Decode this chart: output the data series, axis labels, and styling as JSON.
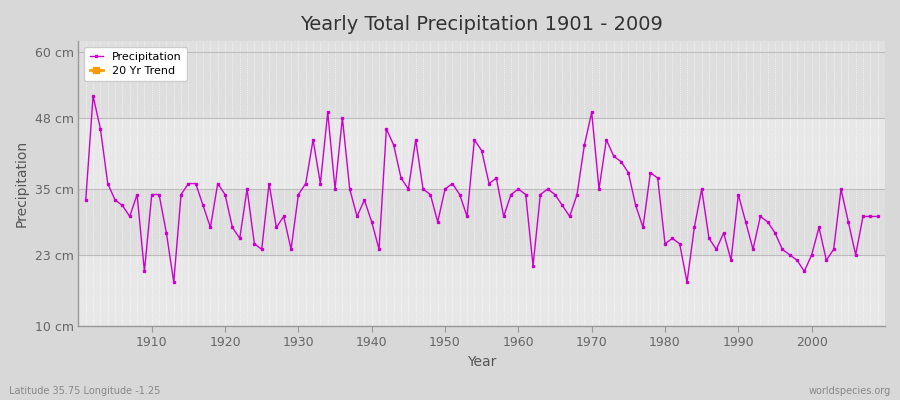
{
  "title": "Yearly Total Precipitation 1901 - 2009",
  "xlabel": "Year",
  "ylabel": "Precipitation",
  "subtitle": "Latitude 35.75 Longitude -1.25",
  "watermark": "worldspecies.org",
  "line_color": "#cc00cc",
  "trend_color": "#ff9900",
  "bg_color": "#d8d8d8",
  "plot_bg_outer": "#e0e0e0",
  "plot_bg_inner": "#e8e8e8",
  "band_color": "#d8d8d8",
  "grid_color": "#ffffff",
  "ylim": [
    10,
    62
  ],
  "yticks": [
    10,
    23,
    35,
    48,
    60
  ],
  "ytick_labels": [
    "10 cm",
    "23 cm",
    "35 cm",
    "48 cm",
    "60 cm"
  ],
  "xlim_left": 1900,
  "xlim_right": 2010,
  "xticks": [
    1910,
    1920,
    1930,
    1940,
    1950,
    1960,
    1970,
    1980,
    1990,
    2000
  ],
  "years": [
    1901,
    1902,
    1903,
    1904,
    1905,
    1906,
    1907,
    1908,
    1909,
    1910,
    1911,
    1912,
    1913,
    1914,
    1915,
    1916,
    1917,
    1918,
    1919,
    1920,
    1921,
    1922,
    1923,
    1924,
    1925,
    1926,
    1927,
    1928,
    1929,
    1930,
    1931,
    1932,
    1933,
    1934,
    1935,
    1936,
    1937,
    1938,
    1939,
    1940,
    1941,
    1942,
    1943,
    1944,
    1945,
    1946,
    1947,
    1948,
    1949,
    1950,
    1951,
    1952,
    1953,
    1954,
    1955,
    1956,
    1957,
    1958,
    1959,
    1960,
    1961,
    1962,
    1963,
    1964,
    1965,
    1966,
    1967,
    1968,
    1969,
    1970,
    1971,
    1972,
    1973,
    1974,
    1975,
    1976,
    1977,
    1978,
    1979,
    1980,
    1981,
    1982,
    1983,
    1984,
    1985,
    1986,
    1987,
    1988,
    1989,
    1990,
    1991,
    1992,
    1993,
    1994,
    1995,
    1996,
    1997,
    1998,
    1999,
    2000,
    2001,
    2002,
    2003,
    2004,
    2005,
    2006,
    2007,
    2008,
    2009
  ],
  "precip": [
    33,
    52,
    46,
    36,
    33,
    32,
    30,
    34,
    20,
    34,
    34,
    27,
    18,
    34,
    36,
    36,
    32,
    28,
    36,
    34,
    28,
    26,
    35,
    25,
    24,
    36,
    28,
    30,
    24,
    34,
    36,
    44,
    36,
    49,
    35,
    48,
    35,
    30,
    33,
    29,
    24,
    46,
    43,
    37,
    35,
    44,
    35,
    34,
    29,
    35,
    36,
    34,
    30,
    44,
    42,
    36,
    37,
    30,
    34,
    35,
    34,
    21,
    34,
    35,
    34,
    32,
    30,
    34,
    43,
    49,
    35,
    44,
    41,
    40,
    38,
    32,
    28,
    38,
    37,
    25,
    26,
    25,
    18,
    28,
    35,
    26,
    24,
    27,
    22,
    34,
    29,
    24,
    30,
    29,
    27,
    24,
    23,
    22,
    20,
    23,
    28,
    22,
    24,
    35,
    29,
    23,
    30,
    30,
    30
  ]
}
